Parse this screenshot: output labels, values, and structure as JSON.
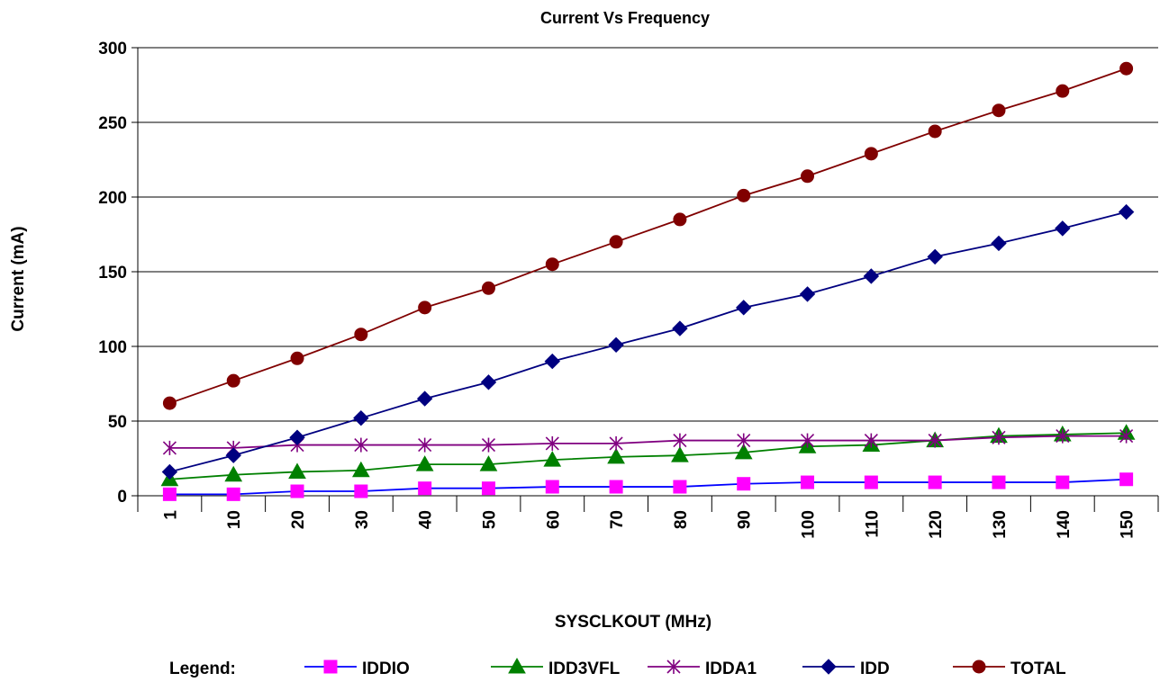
{
  "chart_data": {
    "type": "line",
    "title": "Current Vs Frequency",
    "xlabel": "SYSCLKOUT (MHz)",
    "ylabel": "Current (mA)",
    "categories": [
      "1",
      "10",
      "20",
      "30",
      "40",
      "50",
      "60",
      "70",
      "80",
      "90",
      "100",
      "110",
      "120",
      "130",
      "140",
      "150"
    ],
    "ylim": [
      0,
      300
    ],
    "yticks": [
      0,
      50,
      100,
      150,
      200,
      250,
      300
    ],
    "grid": "horizontal",
    "legend_label": "Legend:",
    "legend_position": "bottom",
    "series": [
      {
        "name": "IDDIO",
        "color": "#ff00ff",
        "line_color": "#0000ff",
        "marker": "square",
        "values": [
          1,
          1,
          3,
          3,
          5,
          5,
          6,
          6,
          6,
          8,
          9,
          9,
          9,
          9,
          9,
          11
        ]
      },
      {
        "name": "IDD3VFL",
        "color": "#008000",
        "line_color": "#008000",
        "marker": "triangle",
        "values": [
          11,
          14,
          16,
          17,
          21,
          21,
          24,
          26,
          27,
          29,
          33,
          34,
          37,
          40,
          41,
          42
        ]
      },
      {
        "name": "IDDA1",
        "color": "#800080",
        "line_color": "#800080",
        "marker": "asterisk",
        "values": [
          32,
          32,
          34,
          34,
          34,
          34,
          35,
          35,
          37,
          37,
          37,
          37,
          37,
          39,
          40,
          40
        ]
      },
      {
        "name": "IDD",
        "color": "#000080",
        "line_color": "#000080",
        "marker": "diamond",
        "values": [
          16,
          27,
          39,
          52,
          65,
          76,
          90,
          101,
          112,
          126,
          135,
          147,
          160,
          169,
          179,
          190
        ]
      },
      {
        "name": "TOTAL",
        "color": "#800000",
        "line_color": "#800000",
        "marker": "circle",
        "values": [
          62,
          77,
          92,
          108,
          126,
          139,
          155,
          170,
          185,
          201,
          214,
          229,
          244,
          258,
          271,
          286
        ]
      }
    ]
  }
}
